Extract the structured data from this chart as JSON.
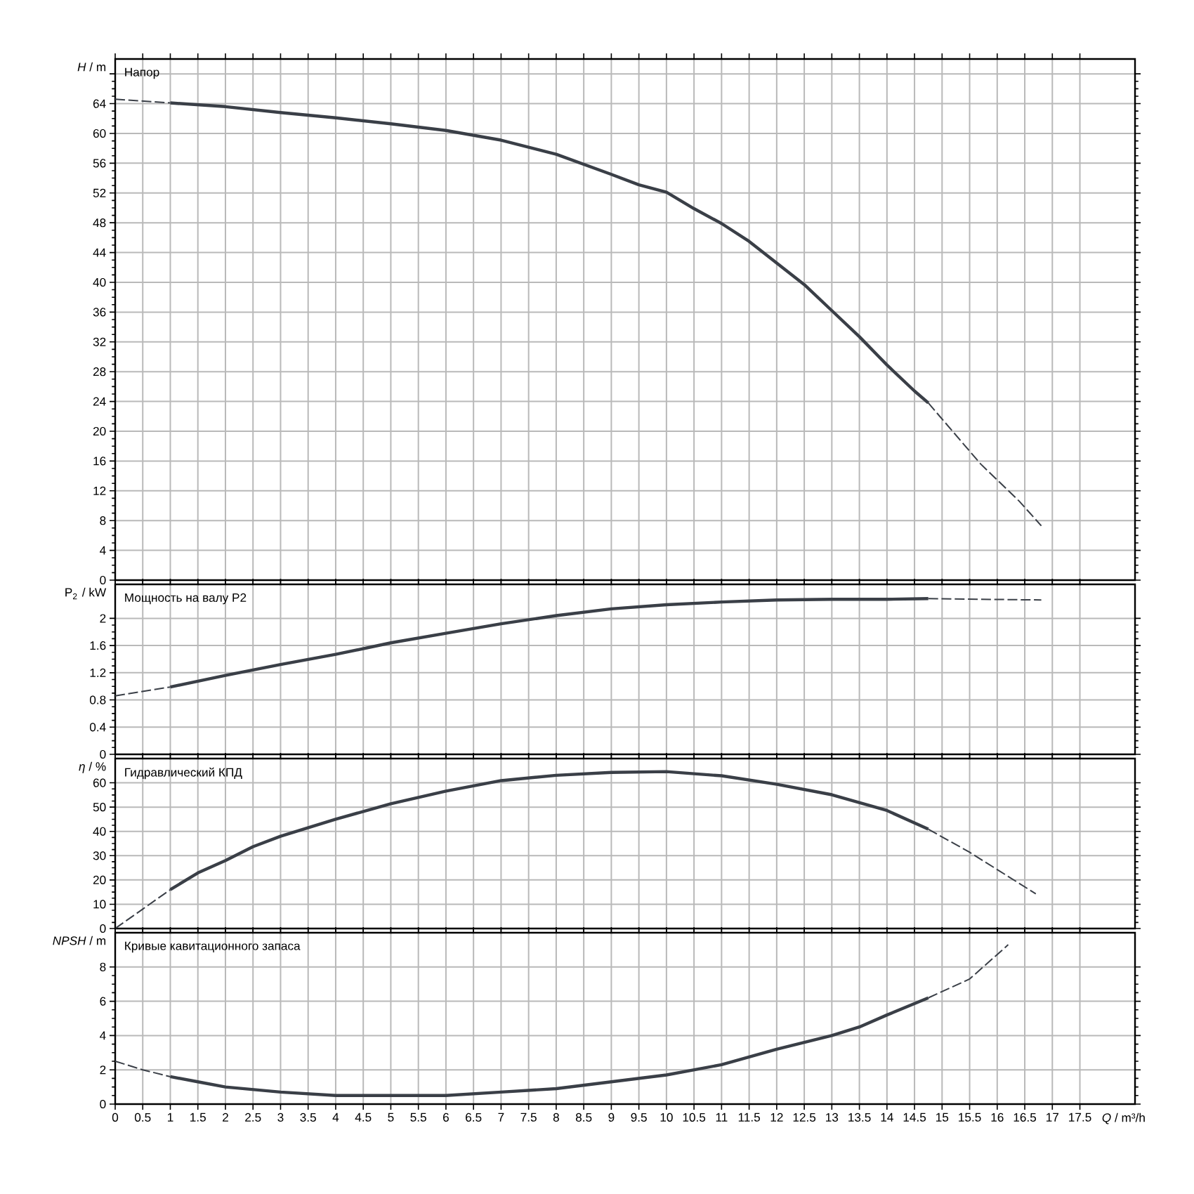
{
  "chart_data": [
    {
      "type": "line",
      "title": "Напор",
      "ylabel": "*H* / m",
      "xlim": [
        0,
        18.5
      ],
      "ylim": [
        0,
        70
      ],
      "grid": true,
      "tick_labels": "y",
      "xticks": [
        0,
        0.5,
        1,
        1.5,
        2,
        2.5,
        3,
        3.5,
        4,
        4.5,
        5,
        5.5,
        6,
        6.5,
        7,
        7.5,
        8,
        8.5,
        9,
        9.5,
        10,
        10.5,
        11,
        11.5,
        12,
        12.5,
        13,
        13.5,
        14,
        14.5,
        15,
        15.5,
        16,
        16.5,
        17,
        17.5
      ],
      "yticks": [
        0,
        4,
        8,
        12,
        16,
        20,
        24,
        28,
        32,
        36,
        40,
        44,
        48,
        52,
        56,
        60,
        64,
        {
          "value": 68,
          "label": null
        }
      ],
      "series": [
        {
          "color": "#3a3f47",
          "line_style": "dashed",
          "x": [
            0,
            1
          ],
          "values": [
            64.6,
            64.1
          ]
        },
        {
          "color": "#3a3f47",
          "line_style": "solid",
          "x": [
            1,
            2,
            3,
            4,
            5,
            6,
            7,
            8,
            9,
            9.5,
            10,
            10.5,
            11,
            11.5,
            12,
            12.5,
            13,
            13.5,
            14,
            14.5,
            14.75
          ],
          "values": [
            64.1,
            63.6,
            62.8,
            62.1,
            61.3,
            60.4,
            59.1,
            57.2,
            54.5,
            53.1,
            52.1,
            49.9,
            47.9,
            45.5,
            42.6,
            39.7,
            36.2,
            32.7,
            28.9,
            25.4,
            23.8
          ]
        },
        {
          "color": "#3a3f47",
          "line_style": "dashed",
          "x": [
            14.75,
            15.7,
            16.4,
            16.8
          ],
          "values": [
            23.8,
            15.6,
            10.6,
            7.3
          ]
        }
      ]
    },
    {
      "type": "line",
      "title": "Мощность на валу P2",
      "ylabel": "P$_{2}$ / kW",
      "xlim": [
        0,
        18.5
      ],
      "ylim": [
        0,
        2.5
      ],
      "grid": true,
      "tick_labels": "y",
      "xticks": [
        0,
        0.5,
        1,
        1.5,
        2,
        2.5,
        3,
        3.5,
        4,
        4.5,
        5,
        5.5,
        6,
        6.5,
        7,
        7.5,
        8,
        8.5,
        9,
        9.5,
        10,
        10.5,
        11,
        11.5,
        12,
        12.5,
        13,
        13.5,
        14,
        14.5,
        15,
        15.5,
        16,
        16.5,
        17,
        17.5
      ],
      "yticks": [
        0,
        0.4,
        0.8,
        1.2,
        1.6,
        2
      ],
      "series": [
        {
          "color": "#3a3f47",
          "line_style": "dashed",
          "x": [
            0,
            1
          ],
          "values": [
            0.86,
            0.99
          ]
        },
        {
          "color": "#3a3f47",
          "line_style": "solid",
          "x": [
            1,
            2,
            3,
            4,
            5,
            6,
            7,
            8,
            9,
            10,
            11,
            12,
            13,
            14,
            14.75
          ],
          "values": [
            0.99,
            1.16,
            1.32,
            1.47,
            1.64,
            1.78,
            1.92,
            2.04,
            2.14,
            2.2,
            2.24,
            2.27,
            2.28,
            2.28,
            2.29
          ]
        },
        {
          "color": "#3a3f47",
          "line_style": "dashed",
          "x": [
            14.75,
            16.8
          ],
          "values": [
            2.29,
            2.27
          ]
        }
      ]
    },
    {
      "type": "line",
      "title": "Гидравлический КПД",
      "ylabel": "*η* / %",
      "xlim": [
        0,
        18.5
      ],
      "ylim": [
        0,
        70
      ],
      "grid": true,
      "tick_labels": "y",
      "xticks": [
        0,
        0.5,
        1,
        1.5,
        2,
        2.5,
        3,
        3.5,
        4,
        4.5,
        5,
        5.5,
        6,
        6.5,
        7,
        7.5,
        8,
        8.5,
        9,
        9.5,
        10,
        10.5,
        11,
        11.5,
        12,
        12.5,
        13,
        13.5,
        14,
        14.5,
        15,
        15.5,
        16,
        16.5,
        17,
        17.5
      ],
      "yticks": [
        0,
        10,
        20,
        30,
        40,
        50,
        60
      ],
      "series": [
        {
          "color": "#3a3f47",
          "line_style": "dashed",
          "x": [
            0,
            0.5,
            1
          ],
          "values": [
            0,
            8,
            16
          ]
        },
        {
          "color": "#3a3f47",
          "line_style": "solid",
          "x": [
            1,
            1.5,
            2,
            2.5,
            3,
            4,
            5,
            6,
            7,
            8,
            9,
            10,
            11,
            12,
            13,
            14,
            14.75
          ],
          "values": [
            16,
            22.9,
            28,
            33.7,
            38,
            45,
            51.4,
            56.6,
            60.9,
            63.1,
            64.3,
            64.6,
            62.9,
            59.4,
            55.1,
            48.6,
            40.9
          ]
        },
        {
          "color": "#3a3f47",
          "line_style": "dashed",
          "x": [
            14.75,
            15.5,
            16.7
          ],
          "values": [
            40.9,
            31.4,
            14.3
          ]
        }
      ]
    },
    {
      "type": "line",
      "title": "Кривые кавитационного запаса",
      "ylabel": "*NPSH* / m",
      "xlabel": "*Q* / m³/h",
      "xlim": [
        0,
        18.5
      ],
      "ylim": [
        0,
        10
      ],
      "grid": true,
      "xticks": [
        0,
        0.5,
        1,
        1.5,
        2,
        2.5,
        3,
        3.5,
        4,
        4.5,
        5,
        5.5,
        6,
        6.5,
        7,
        7.5,
        8,
        8.5,
        9,
        9.5,
        10,
        10.5,
        11,
        11.5,
        12,
        12.5,
        13,
        13.5,
        14,
        14.5,
        15,
        15.5,
        16,
        16.5,
        17,
        17.5
      ],
      "yticks": [
        0,
        2,
        4,
        6,
        8
      ],
      "series": [
        {
          "color": "#3a3f47",
          "line_style": "dashed",
          "x": [
            0,
            0.5,
            1
          ],
          "values": [
            2.5,
            2.0,
            1.6
          ]
        },
        {
          "color": "#3a3f47",
          "line_style": "solid",
          "x": [
            1,
            1.5,
            2,
            3,
            4,
            5,
            6,
            7,
            8,
            9,
            10,
            11,
            12,
            13,
            13.5,
            14,
            14.75
          ],
          "values": [
            1.6,
            1.3,
            1.0,
            0.7,
            0.5,
            0.5,
            0.5,
            0.7,
            0.9,
            1.3,
            1.7,
            2.3,
            3.2,
            4.0,
            4.5,
            5.2,
            6.2
          ]
        },
        {
          "color": "#3a3f47",
          "line_style": "dashed",
          "x": [
            14.75,
            15.5,
            16.2
          ],
          "values": [
            6.2,
            7.3,
            9.3
          ]
        }
      ]
    }
  ]
}
